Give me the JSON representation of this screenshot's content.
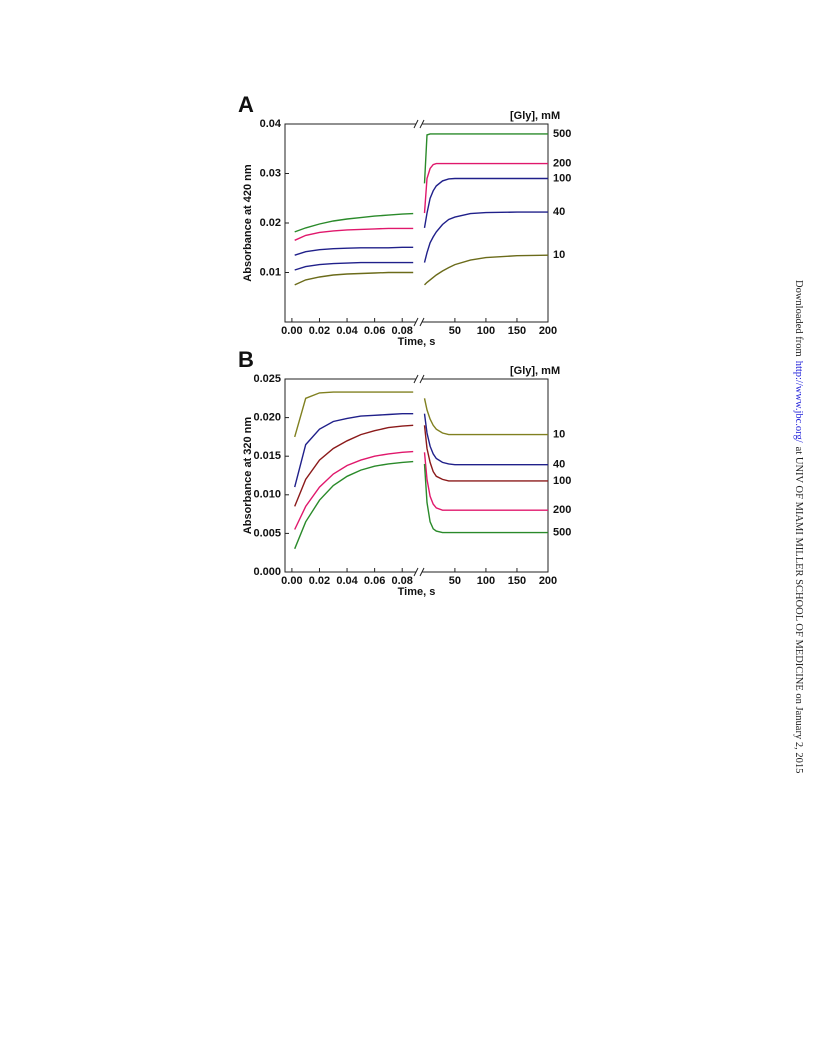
{
  "chart_data": [
    {
      "type": "line",
      "label": "A",
      "ylabel": "Absorbance at 420 nm",
      "xlabel": "Time, s",
      "legend_title": "[Gly], mM",
      "ylim": [
        0,
        0.04
      ],
      "yticks": [
        0.01,
        0.02,
        0.03,
        0.04
      ],
      "series": [
        {
          "name": "500",
          "color": "#2a8a2a"
        },
        {
          "name": "200",
          "color": "#e0186c"
        },
        {
          "name": "100",
          "color": "#20208a"
        },
        {
          "name": "40",
          "color": "#20208a"
        },
        {
          "name": "10",
          "color": "#6b6b1a"
        }
      ],
      "panels": [
        {
          "xlim": [
            -0.005,
            0.09
          ],
          "xticks": [
            {
              "value": 0,
              "label": "0.00"
            },
            0.02,
            0.04,
            0.06,
            0.08
          ],
          "x": [
            0.002,
            0.01,
            0.02,
            0.03,
            0.04,
            0.05,
            0.06,
            0.07,
            0.08,
            0.088
          ],
          "values": [
            [
              0.0182,
              0.019,
              0.0198,
              0.0204,
              0.0208,
              0.0211,
              0.0214,
              0.0216,
              0.0218,
              0.0219
            ],
            [
              0.0165,
              0.0175,
              0.0181,
              0.0184,
              0.0186,
              0.0187,
              0.0188,
              0.0189,
              0.0189,
              0.0189
            ],
            [
              0.0135,
              0.0142,
              0.0146,
              0.0148,
              0.0149,
              0.015,
              0.015,
              0.015,
              0.0151,
              0.0151
            ],
            [
              0.0105,
              0.0112,
              0.0116,
              0.0118,
              0.0119,
              0.012,
              0.012,
              0.012,
              0.012,
              0.012
            ],
            [
              0.0075,
              0.0085,
              0.0091,
              0.0095,
              0.0097,
              0.0098,
              0.0099,
              0.01,
              0.01,
              0.01
            ]
          ]
        },
        {
          "xlim": [
            -3,
            200
          ],
          "xticks": [
            50,
            100,
            150,
            200
          ],
          "x": [
            1,
            5,
            10,
            15,
            20,
            30,
            40,
            50,
            75,
            100,
            150,
            200
          ],
          "values": [
            [
              0.028,
              0.0378,
              0.038,
              0.038,
              0.038,
              0.038,
              0.038,
              0.038,
              0.038,
              0.038,
              0.038,
              0.038
            ],
            [
              0.022,
              0.029,
              0.031,
              0.0318,
              0.032,
              0.032,
              0.032,
              0.032,
              0.032,
              0.032,
              0.032,
              0.032
            ],
            [
              0.019,
              0.022,
              0.025,
              0.0265,
              0.0275,
              0.0285,
              0.0289,
              0.029,
              0.029,
              0.029,
              0.029,
              0.029
            ],
            [
              0.012,
              0.014,
              0.016,
              0.0172,
              0.0182,
              0.0197,
              0.0207,
              0.0212,
              0.0219,
              0.0221,
              0.0222,
              0.0222
            ],
            [
              0.0075,
              0.008,
              0.0085,
              0.009,
              0.0095,
              0.0103,
              0.011,
              0.0116,
              0.0125,
              0.013,
              0.0134,
              0.0135
            ]
          ]
        }
      ]
    },
    {
      "type": "line",
      "label": "B",
      "ylabel": "Absorbance at 320 nm",
      "xlabel": "Time, s",
      "legend_title": "[Gly], mM",
      "ylim": [
        0,
        0.025
      ],
      "yticks": [
        {
          "value": 0,
          "label": "0.000"
        },
        {
          "value": 0.005,
          "label": "0.005"
        },
        {
          "value": 0.01,
          "label": "0.010"
        },
        {
          "value": 0.015,
          "label": "0.015"
        },
        {
          "value": 0.02,
          "label": "0.020"
        },
        {
          "value": 0.025,
          "label": "0.025"
        }
      ],
      "series": [
        {
          "name": "10",
          "color": "#808020"
        },
        {
          "name": "40",
          "color": "#20208a"
        },
        {
          "name": "100",
          "color": "#8b1a1a"
        },
        {
          "name": "200",
          "color": "#e0186c"
        },
        {
          "name": "500",
          "color": "#2a8a2a"
        }
      ],
      "panels": [
        {
          "xlim": [
            -0.005,
            0.09
          ],
          "xticks": [
            {
              "value": 0,
              "label": "0.00"
            },
            0.02,
            0.04,
            0.06,
            0.08
          ],
          "x": [
            0.002,
            0.01,
            0.02,
            0.03,
            0.04,
            0.05,
            0.06,
            0.07,
            0.08,
            0.088
          ],
          "values": [
            [
              0.0175,
              0.0225,
              0.0232,
              0.0233,
              0.0233,
              0.0233,
              0.0233,
              0.0233,
              0.0233,
              0.0233
            ],
            [
              0.011,
              0.0165,
              0.0185,
              0.0195,
              0.0199,
              0.0202,
              0.0203,
              0.0204,
              0.0205,
              0.0205
            ],
            [
              0.0085,
              0.012,
              0.0145,
              0.016,
              0.017,
              0.0178,
              0.0183,
              0.0187,
              0.0189,
              0.019
            ],
            [
              0.0055,
              0.0085,
              0.011,
              0.0127,
              0.0138,
              0.0145,
              0.015,
              0.0153,
              0.0155,
              0.0156
            ],
            [
              0.003,
              0.0065,
              0.0093,
              0.0112,
              0.0124,
              0.0132,
              0.0137,
              0.014,
              0.0142,
              0.0143
            ]
          ]
        },
        {
          "xlim": [
            -3,
            200
          ],
          "xticks": [
            50,
            100,
            150,
            200
          ],
          "x": [
            1,
            5,
            10,
            15,
            20,
            30,
            40,
            50,
            75,
            100,
            150,
            200
          ],
          "values": [
            [
              0.0225,
              0.021,
              0.0198,
              0.019,
              0.0185,
              0.018,
              0.0178,
              0.0178,
              0.0178,
              0.0178,
              0.0178,
              0.0178
            ],
            [
              0.0205,
              0.018,
              0.0163,
              0.0153,
              0.0147,
              0.0142,
              0.014,
              0.0139,
              0.0139,
              0.0139,
              0.0139,
              0.0139
            ],
            [
              0.019,
              0.016,
              0.0142,
              0.013,
              0.0124,
              0.012,
              0.0118,
              0.0118,
              0.0118,
              0.0118,
              0.0118,
              0.0118
            ],
            [
              0.0155,
              0.012,
              0.0098,
              0.0088,
              0.0083,
              0.008,
              0.008,
              0.008,
              0.008,
              0.008,
              0.008,
              0.008
            ],
            [
              0.014,
              0.009,
              0.0065,
              0.0056,
              0.0053,
              0.0051,
              0.0051,
              0.0051,
              0.0051,
              0.0051,
              0.0051,
              0.0051
            ]
          ]
        }
      ]
    }
  ],
  "side_note": {
    "prefix": "Downloaded from",
    "link": "http://www.jbc.org/",
    "suffix": "at UNIV OF MIAMI MILLER SCHOOL OF MEDICINE on January 2, 2015"
  }
}
